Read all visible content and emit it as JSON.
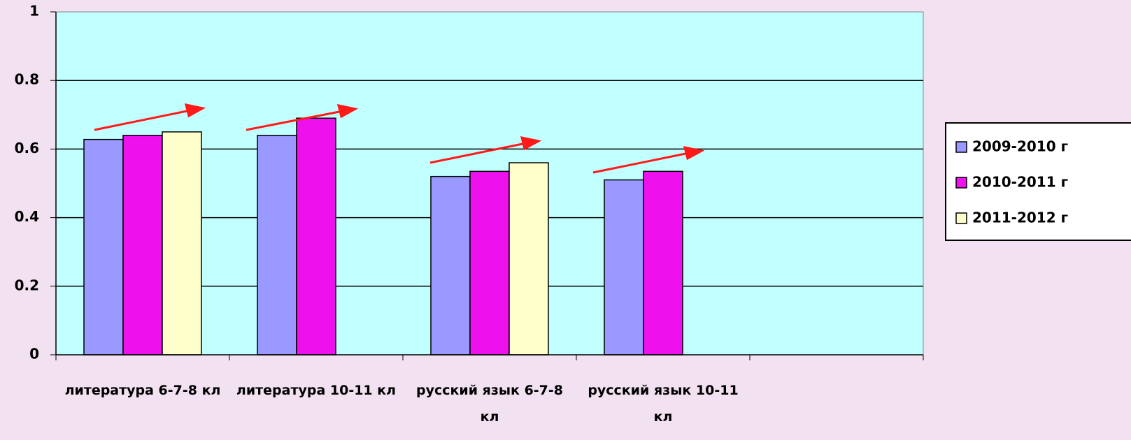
{
  "chart_data": {
    "type": "bar",
    "categories": [
      "литература 6-7-8 кл",
      "литература 10-11 кл",
      "русский язык 6-7-8 кл",
      "русский язык 10-11 кл",
      null
    ],
    "series": [
      {
        "name": "2009-2010 г",
        "color": "#9999ff",
        "values": [
          0.628,
          0.64,
          0.52,
          0.51,
          null
        ]
      },
      {
        "name": "2010-2011 г",
        "color": "#ee11ee",
        "values": [
          0.64,
          0.69,
          0.535,
          0.535,
          null
        ]
      },
      {
        "name": "2011-2012 г",
        "color": "#ffffcc",
        "values": [
          0.65,
          null,
          0.56,
          null,
          null
        ]
      }
    ],
    "ylim": [
      0,
      1
    ],
    "yticks": [
      0,
      0.2,
      0.4,
      0.6,
      0.8,
      1
    ],
    "grid": true,
    "legend": "right"
  }
}
